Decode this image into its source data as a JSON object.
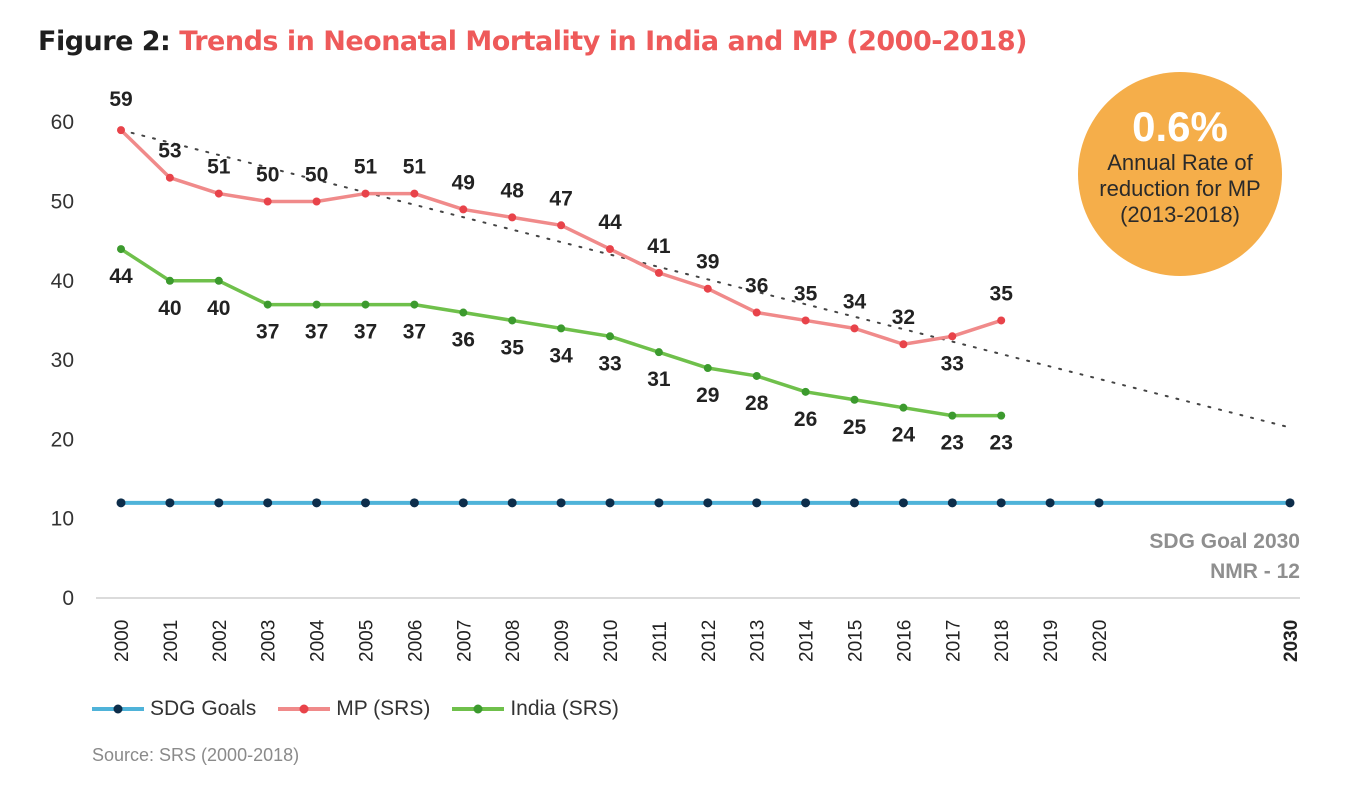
{
  "title": {
    "prefix": "Figure 2:",
    "text": "Trends in Neonatal Mortality in India and MP (2000-2018)"
  },
  "badge": {
    "value": "0.6%",
    "line1": "Annual Rate of",
    "line2": "reduction for MP",
    "line3": "(2013-2018)"
  },
  "goal_label": {
    "line1": "SDG Goal 2030",
    "line2": "NMR - 12"
  },
  "source": "Source: SRS (2000-2018)",
  "colors": {
    "sdg": "#4fb3d9",
    "sdg_marker": "#0d2d4a",
    "mp": "#f08a8a",
    "mp_marker": "#e8434a",
    "india": "#6fc04b",
    "india_marker": "#3c9a2e",
    "trend": "#444444"
  },
  "chart_data": {
    "type": "line",
    "title": "Trends in Neonatal Mortality in India and MP (2000-2018)",
    "categories": [
      "2000",
      "2001",
      "2002",
      "2003",
      "2004",
      "2005",
      "2006",
      "2007",
      "2008",
      "2009",
      "2010",
      "2011",
      "2012",
      "2013",
      "2014",
      "2015",
      "2016",
      "2017",
      "2018",
      "2019",
      "2020",
      "2030"
    ],
    "ylim": [
      0,
      60
    ],
    "yticks": [
      0,
      10,
      20,
      30,
      40,
      50,
      60
    ],
    "grid": false,
    "legend_position": "bottom-left",
    "series": [
      {
        "name": "SDG Goals",
        "values": [
          12,
          12,
          12,
          12,
          12,
          12,
          12,
          12,
          12,
          12,
          12,
          12,
          12,
          12,
          12,
          12,
          12,
          12,
          12,
          12,
          12,
          12
        ]
      },
      {
        "name": "MP (SRS)",
        "values": [
          59,
          53,
          51,
          50,
          50,
          51,
          51,
          49,
          48,
          47,
          44,
          41,
          39,
          36,
          35,
          34,
          32,
          33,
          35,
          null,
          null,
          null
        ]
      },
      {
        "name": "India (SRS)",
        "values": [
          44,
          40,
          40,
          37,
          37,
          37,
          37,
          36,
          35,
          34,
          33,
          31,
          29,
          28,
          26,
          25,
          24,
          23,
          23,
          null,
          null,
          null
        ]
      }
    ],
    "trendline": {
      "series": "MP (SRS)",
      "from": [
        "2000",
        59
      ],
      "to": [
        "2030",
        21.5
      ]
    }
  }
}
